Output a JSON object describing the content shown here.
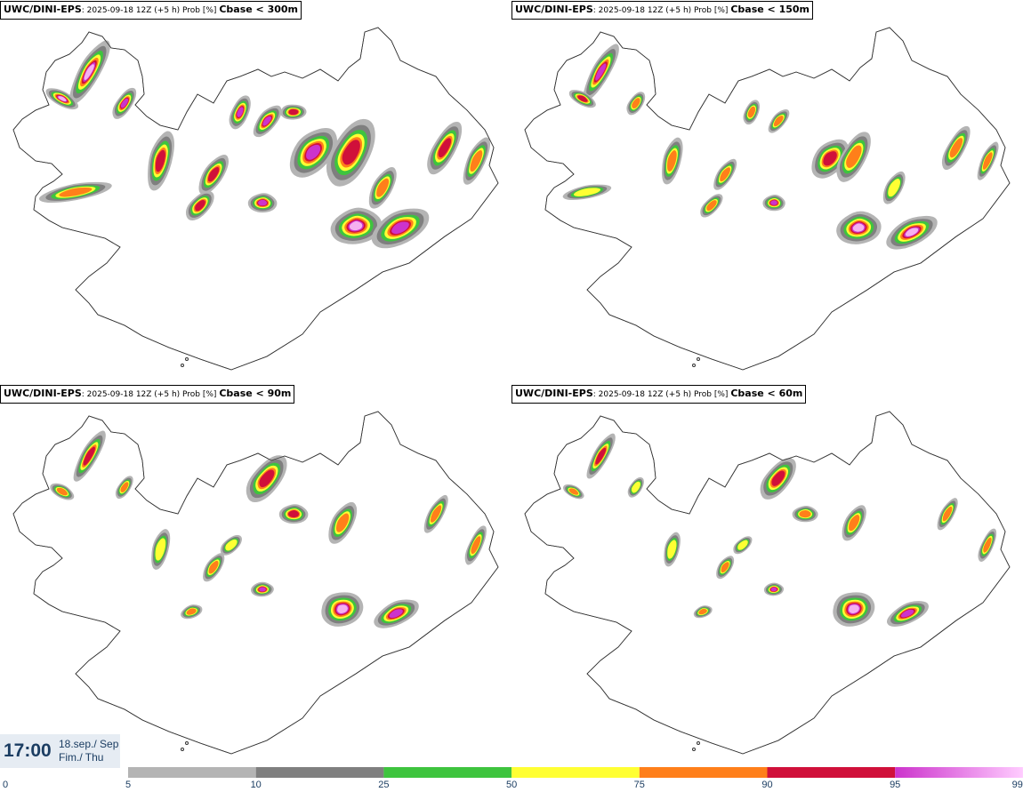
{
  "panels": [
    {
      "model": "UWC/DINI-EPS",
      "run": "2025-09-18 12Z (+5 h) Prob [%]",
      "cbase": "Cbase < 300m"
    },
    {
      "model": "UWC/DINI-EPS",
      "run": "2025-09-18 12Z (+5 h) Prob [%]",
      "cbase": "Cbase < 150m"
    },
    {
      "model": "UWC/DINI-EPS",
      "run": "2025-09-18 12Z (+5 h) Prob [%]",
      "cbase": "Cbase < 90m"
    },
    {
      "model": "UWC/DINI-EPS",
      "run": "2025-09-18 12Z (+5 h) Prob [%]",
      "cbase": "Cbase < 60m"
    }
  ],
  "time": "17:00",
  "date": {
    "line1": "18.sep./ Sep",
    "line2": "Fim./ Thu"
  },
  "colorbar": {
    "labels": [
      "0",
      "5",
      "10",
      "25",
      "50",
      "75",
      "90",
      "95",
      "99"
    ],
    "bins": [
      {
        "from": 5,
        "to": 10,
        "color": "#b4b4b4"
      },
      {
        "from": 10,
        "to": 25,
        "color": "#7f7f7f"
      },
      {
        "from": 25,
        "to": 50,
        "color": "#3ec43e"
      },
      {
        "from": 50,
        "to": 75,
        "color": "#ffff33"
      },
      {
        "from": 75,
        "to": 90,
        "color": "#ff7f1a"
      },
      {
        "from": 90,
        "to": 95,
        "color": "#d0103a"
      },
      {
        "from": 95,
        "to": 99,
        "color": "#cc33cc",
        "gradient_to": "#ffccff"
      }
    ]
  },
  "colors": {
    "label": "#1b3d62",
    "coast": "#333333"
  }
}
